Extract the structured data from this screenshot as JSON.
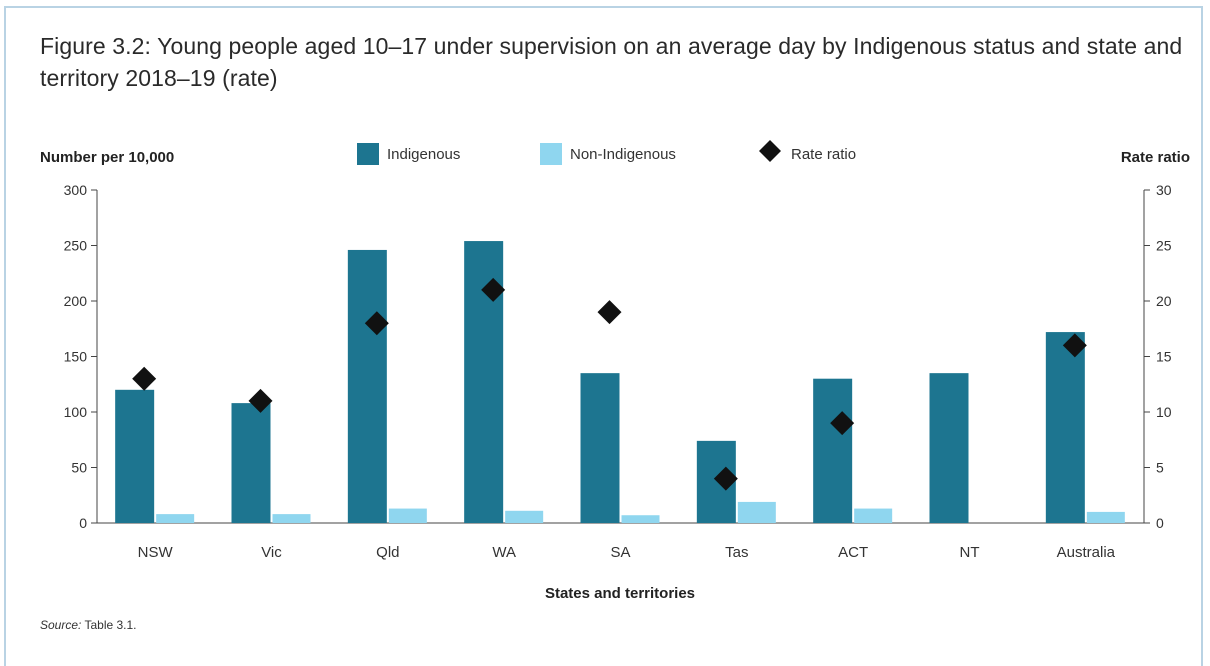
{
  "figure": {
    "title": "Figure 3.2: Young people aged 10–17 under supervision on an average day by Indigenous status and state and territory 2018–19 (rate)",
    "source_label": "Source:",
    "source_text": " Table 3.1."
  },
  "colors": {
    "indigenous": "#1d7590",
    "non_indigenous": "#8fd6ef",
    "rate_ratio": "#111111",
    "axis": "#444444",
    "frame": "#b9d3e4"
  },
  "chart_data": {
    "type": "bar",
    "title": "",
    "xlabel": "States and territories",
    "ylabel": "Number per 10,000",
    "y2label": "Rate ratio",
    "categories": [
      "NSW",
      "Vic",
      "Qld",
      "WA",
      "SA",
      "Tas",
      "ACT",
      "NT",
      "Australia"
    ],
    "ylim": [
      0,
      300
    ],
    "y2lim": [
      0,
      30
    ],
    "yticks": [
      0,
      50,
      100,
      150,
      200,
      250,
      300
    ],
    "y2ticks": [
      0,
      5,
      10,
      15,
      20,
      25,
      30
    ],
    "grid": false,
    "legend_position": "top-center",
    "series": [
      {
        "name": "Indigenous",
        "kind": "bar",
        "axis": "left",
        "values": [
          120,
          108,
          246,
          254,
          135,
          74,
          130,
          135,
          172
        ]
      },
      {
        "name": "Non-Indigenous",
        "kind": "bar",
        "axis": "left",
        "values": [
          8,
          8,
          13,
          11,
          7,
          19,
          13,
          null,
          10
        ]
      },
      {
        "name": "Rate ratio",
        "kind": "marker",
        "axis": "right",
        "values": [
          13,
          11,
          18,
          21,
          19,
          4,
          9,
          null,
          16
        ]
      }
    ]
  }
}
